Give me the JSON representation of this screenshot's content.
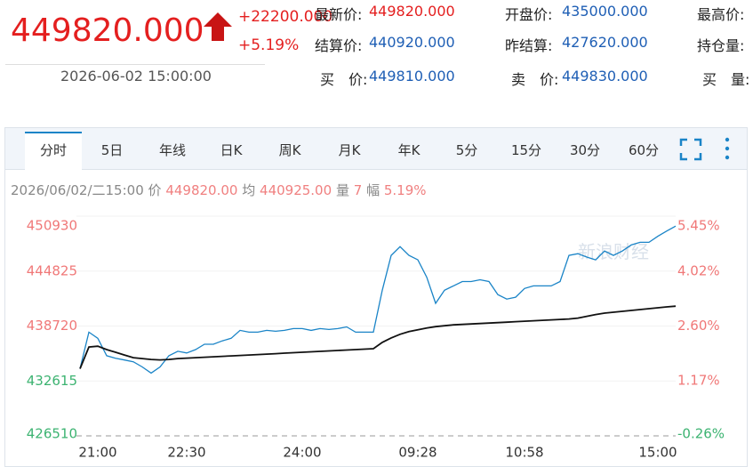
{
  "quote": {
    "price": "449820.000",
    "change": "+22200.000",
    "change_pct": "+5.19%",
    "datetime": "2026-06-02 15:00:00",
    "fields": [
      {
        "label": "最新价:",
        "value": "449820.000"
      },
      {
        "label": "开盘价:",
        "value": "435000.000"
      },
      {
        "label": "最高价:"
      },
      {
        "label": "结算价:",
        "value": "440920.000"
      },
      {
        "label": "昨结算:",
        "value": "427620.000"
      },
      {
        "label": "持仓量:"
      },
      {
        "label": "买　价:",
        "value": "449810.000"
      },
      {
        "label": "卖　价:",
        "value": "449830.000"
      },
      {
        "label": "买　量:"
      }
    ]
  },
  "tabs": [
    "分时",
    "5日",
    "年线",
    "日K",
    "周K",
    "月K",
    "年K",
    "5分",
    "15分",
    "30分",
    "60分"
  ],
  "info": {
    "datetime": "2026/06/02/二15:00",
    "price_label": "价",
    "price": "449820.00",
    "avg_label": "均",
    "avg": "440925.00",
    "vol_label": "量",
    "vol": "7",
    "amp_label": "幅",
    "amp": "5.19%"
  },
  "watermark": "新浪财经",
  "chart_data": {
    "type": "line",
    "categories": [
      null,
      null,
      "21:00",
      null,
      null,
      null,
      null,
      null,
      null,
      null,
      null,
      null,
      "22:30",
      null,
      null,
      null,
      null,
      null,
      null,
      null,
      null,
      null,
      null,
      null,
      null,
      "24:00",
      null,
      null,
      null,
      null,
      null,
      null,
      null,
      null,
      null,
      null,
      null,
      null,
      "09:28",
      null,
      null,
      null,
      null,
      null,
      null,
      null,
      null,
      null,
      null,
      null,
      "10:58",
      null,
      null,
      null,
      null,
      null,
      null,
      null,
      null,
      null,
      null,
      null,
      null,
      null,
      null,
      "15:00",
      null,
      null
    ],
    "series": [
      {
        "color": "#1a84c7",
        "values": [
          433970,
          438040,
          437360,
          435420,
          435130,
          434940,
          434750,
          434170,
          433490,
          434170,
          435420,
          435910,
          435720,
          436100,
          436690,
          436690,
          437070,
          437360,
          438240,
          438040,
          438040,
          438240,
          438140,
          438240,
          438430,
          438430,
          438240,
          438430,
          438330,
          438430,
          438620,
          438040,
          438040,
          438040,
          442690,
          446570,
          447540,
          446570,
          446080,
          444150,
          441240,
          442690,
          443180,
          443660,
          443660,
          443860,
          443660,
          442210,
          441720,
          441920,
          442890,
          443180,
          443180,
          443180,
          443660,
          446570,
          446760,
          446380,
          446080,
          447050,
          446570,
          447050,
          447730,
          448020,
          448020,
          448700,
          449280,
          449820
        ]
      },
      {
        "color": "#111111",
        "values": [
          433970,
          436390,
          436480,
          436100,
          435800,
          435500,
          435200,
          435100,
          435000,
          434950,
          435000,
          435100,
          435150,
          435200,
          435250,
          435300,
          435350,
          435400,
          435450,
          435500,
          435550,
          435600,
          435650,
          435700,
          435750,
          435800,
          435850,
          435900,
          435950,
          436000,
          436050,
          436100,
          436150,
          436200,
          436900,
          437400,
          437800,
          438100,
          438300,
          438500,
          438650,
          438750,
          438850,
          438900,
          438950,
          439000,
          439050,
          439100,
          439150,
          439200,
          439250,
          439300,
          439350,
          439400,
          439450,
          439500,
          439600,
          439800,
          440000,
          440150,
          440250,
          440350,
          440450,
          440550,
          440650,
          440750,
          440850,
          440925
        ]
      }
    ],
    "ylim": [
      426510,
      450930
    ],
    "yticks": [
      450930,
      444825,
      438720,
      432615,
      426510
    ],
    "y2lim": [
      -0.26,
      5.45
    ],
    "y2ticks": [
      {
        "value": 5.45,
        "label": "5.45%"
      },
      {
        "value": 4.02,
        "label": "4.02%"
      },
      {
        "value": 2.6,
        "label": "2.60%"
      },
      {
        "value": 1.17,
        "label": "1.17%"
      },
      {
        "value": -0.26,
        "label": "-0.26%"
      }
    ],
    "grid": true
  }
}
